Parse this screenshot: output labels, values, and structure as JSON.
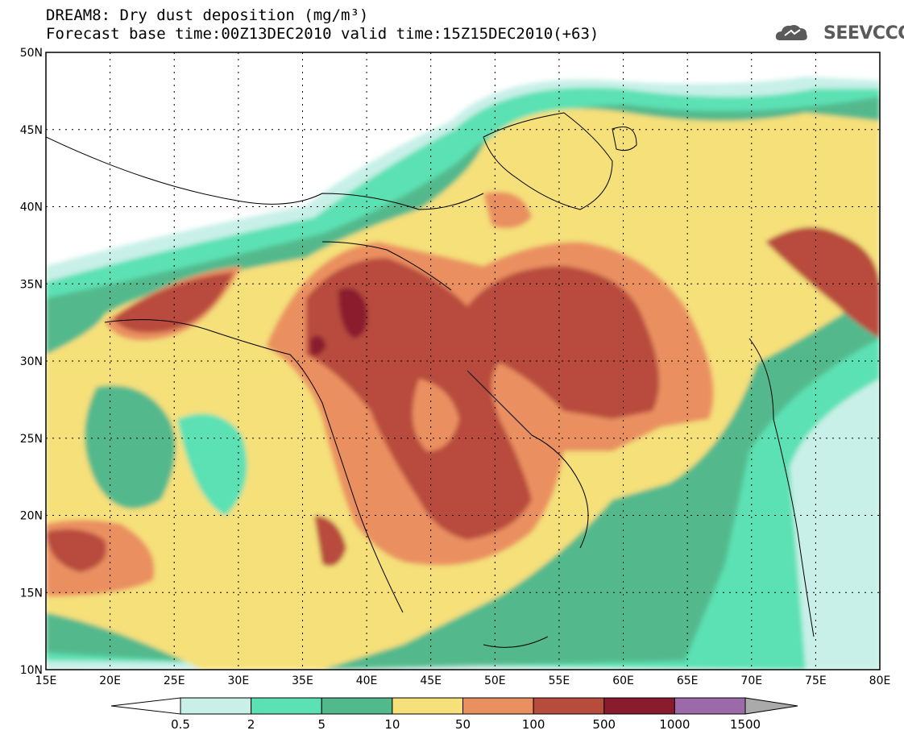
{
  "header": {
    "title_line1": "DREAM8: Dry dust deposition (mg/m³)",
    "title_line2": "Forecast base time:00Z13DEC2010 valid time:15Z15DEC2010(+63)"
  },
  "logo": {
    "text": "SEEVCCC",
    "icon": "cloud-icon"
  },
  "map": {
    "lon_range": [
      15,
      80
    ],
    "lat_range": [
      10,
      50
    ],
    "lon_ticks": [
      "15E",
      "20E",
      "25E",
      "30E",
      "35E",
      "40E",
      "45E",
      "50E",
      "55E",
      "60E",
      "65E",
      "70E",
      "75E",
      "80E"
    ],
    "lat_ticks": [
      "10N",
      "15N",
      "20N",
      "25N",
      "30N",
      "35N",
      "40N",
      "45N",
      "50N"
    ],
    "grid": "dotted"
  },
  "colorbar": {
    "labels": [
      "0.5",
      "2",
      "5",
      "10",
      "50",
      "100",
      "500",
      "1000",
      "1500"
    ],
    "colors": [
      "#ffffff",
      "#c8f0e8",
      "#5ce1b4",
      "#52b98c",
      "#f5e07a",
      "#ea9060",
      "#b84c3c",
      "#8a1a2e",
      "#9c6aa8",
      "#aaaaaa"
    ]
  }
}
